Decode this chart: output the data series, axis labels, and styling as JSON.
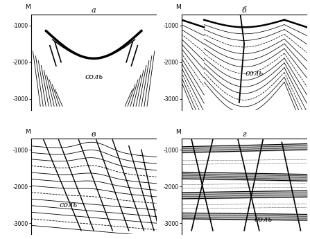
{
  "panels": [
    "а",
    "б",
    "в",
    "г"
  ],
  "ylim": [
    -3300,
    -700
  ],
  "yticks": [
    -1000,
    -2000,
    -3000
  ],
  "ylabel": "M",
  "sol_label": "соль",
  "bg_color": "#ffffff",
  "line_color": "#000000"
}
